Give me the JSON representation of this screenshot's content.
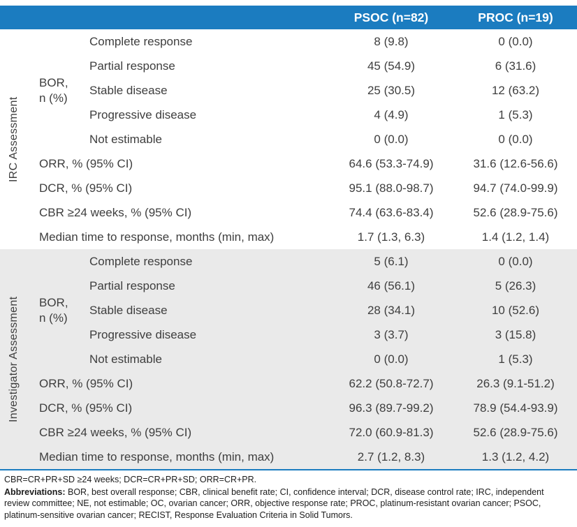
{
  "header": {
    "psoc": "PSOC (n=82)",
    "proc": "PROC (n=19)"
  },
  "colors": {
    "header_blue": "#1b7cc0",
    "section_gray": "#eaeaea",
    "body_text": "#3e3e3e"
  },
  "sections": [
    {
      "assessment_label": "IRC Assessment",
      "bor_label": [
        "BOR,",
        "n (%)"
      ],
      "bor_rows": [
        {
          "label": "Complete response",
          "psoc": "8 (9.8)",
          "proc": "0 (0.0)"
        },
        {
          "label": "Partial response",
          "psoc": "45 (54.9)",
          "proc": "6 (31.6)"
        },
        {
          "label": "Stable disease",
          "psoc": "25 (30.5)",
          "proc": "12 (63.2)"
        },
        {
          "label": "Progressive disease",
          "psoc": "4 (4.9)",
          "proc": "1 (5.3)"
        },
        {
          "label": "Not estimable",
          "psoc": "0 (0.0)",
          "proc": "0 (0.0)"
        }
      ],
      "stat_rows": [
        {
          "label": "ORR, % (95% CI)",
          "psoc": "64.6 (53.3-74.9)",
          "proc": "31.6 (12.6-56.6)"
        },
        {
          "label": "DCR, % (95% CI)",
          "psoc": "95.1 (88.0-98.7)",
          "proc": "94.7 (74.0-99.9)"
        },
        {
          "label": "CBR ≥24 weeks, % (95% CI)",
          "psoc": "74.4 (63.6-83.4)",
          "proc": "52.6 (28.9-75.6)"
        },
        {
          "label": "Median time to response, months (min, max)",
          "psoc": "1.7 (1.3, 6.3)",
          "proc": "1.4 (1.2, 1.4)"
        }
      ]
    },
    {
      "assessment_label": "Investigator Assessment",
      "bor_label": [
        "BOR,",
        "n (%)"
      ],
      "bor_rows": [
        {
          "label": "Complete response",
          "psoc": "5 (6.1)",
          "proc": "0 (0.0)"
        },
        {
          "label": "Partial response",
          "psoc": "46 (56.1)",
          "proc": "5 (26.3)"
        },
        {
          "label": "Stable disease",
          "psoc": "28 (34.1)",
          "proc": "10 (52.6)"
        },
        {
          "label": "Progressive disease",
          "psoc": "3 (3.7)",
          "proc": "3 (15.8)"
        },
        {
          "label": "Not estimable",
          "psoc": "0 (0.0)",
          "proc": "1 (5.3)"
        }
      ],
      "stat_rows": [
        {
          "label": "ORR, % (95% CI)",
          "psoc": "62.2 (50.8-72.7)",
          "proc": "26.3 (9.1-51.2)"
        },
        {
          "label": "DCR, % (95% CI)",
          "psoc": "96.3 (89.7-99.2)",
          "proc": "78.9 (54.4-93.9)"
        },
        {
          "label": "CBR ≥24 weeks, % (95% CI)",
          "psoc": "72.0 (60.9-81.3)",
          "proc": "52.6 (28.9-75.6)"
        },
        {
          "label": "Median time to response, months (min, max)",
          "psoc": "2.7 (1.2, 8.3)",
          "proc": "1.3 (1.2, 4.2)"
        }
      ]
    }
  ],
  "footnotes": {
    "line1": "CBR=CR+PR+SD ≥24 weeks; DCR=CR+PR+SD; ORR=CR+PR.",
    "abbr_label": "Abbreviations:",
    "abbr_text": " BOR, best overall response; CBR, clinical benefit rate; CI, confidence interval; DCR, disease control rate; IRC, independent review committee; NE, not estimable; OC, ovarian cancer; ORR, objective response rate; PROC, platinum-resistant ovarian cancer; PSOC, platinum-sensitive ovarian cancer; RECIST, Response Evaluation Criteria in Solid Tumors."
  }
}
